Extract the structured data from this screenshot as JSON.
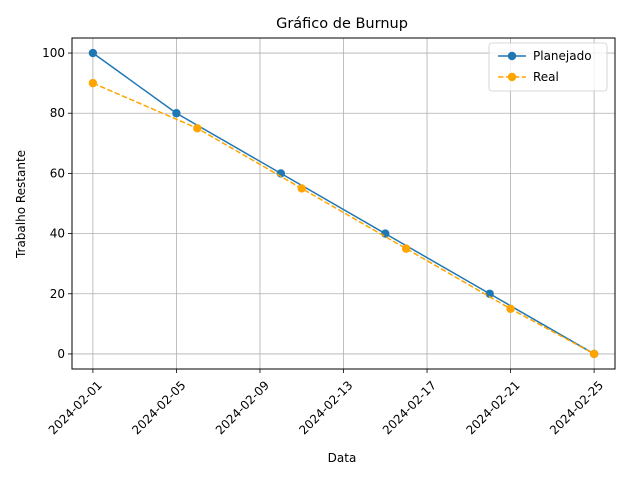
{
  "chart_data": {
    "type": "line",
    "title": "Gráfico de Burnup",
    "xlabel": "Data",
    "ylabel": "Trabalho Restante",
    "x_ticks": [
      "2024-02-01",
      "2024-02-05",
      "2024-02-09",
      "2024-02-13",
      "2024-02-17",
      "2024-02-21",
      "2024-02-25"
    ],
    "y_ticks": [
      0,
      20,
      40,
      60,
      80,
      100
    ],
    "xlim": [
      "2024-01-31",
      "2024-02-26"
    ],
    "ylim": [
      -5,
      105
    ],
    "grid": true,
    "legend_position": "top-right",
    "series": [
      {
        "name": "Planejado",
        "color": "#1f77b4",
        "line_style": "solid",
        "marker": "circle",
        "x": [
          "2024-02-01",
          "2024-02-05",
          "2024-02-10",
          "2024-02-15",
          "2024-02-20",
          "2024-02-25"
        ],
        "y": [
          100,
          80,
          60,
          40,
          20,
          0
        ]
      },
      {
        "name": "Real",
        "color": "#ffa500",
        "line_style": "dashed",
        "marker": "circle",
        "x": [
          "2024-02-01",
          "2024-02-06",
          "2024-02-11",
          "2024-02-16",
          "2024-02-21",
          "2024-02-25"
        ],
        "y": [
          90,
          75,
          55,
          35,
          15,
          0
        ]
      }
    ]
  }
}
